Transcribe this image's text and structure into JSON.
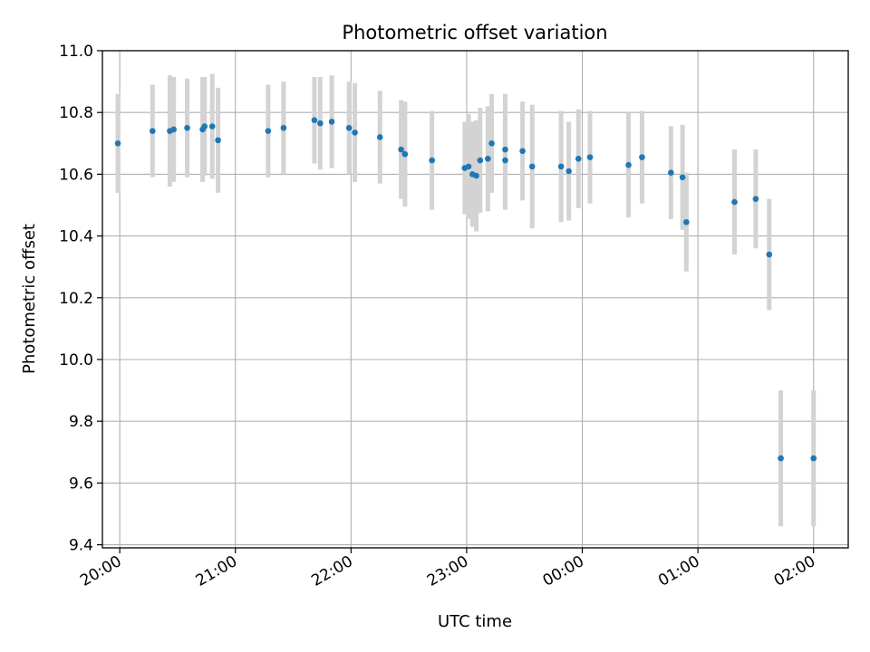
{
  "chart_data": {
    "type": "scatter",
    "title": "Photometric offset variation",
    "xlabel": "UTC time",
    "ylabel": "Photometric offset",
    "x_unit": "UTC time (HH:MM)",
    "xlim": [
      "19:51",
      "02:18"
    ],
    "ylim": [
      9.39,
      11.0
    ],
    "x_ticks": [
      "20:00",
      "21:00",
      "22:00",
      "23:00",
      "00:00",
      "01:00",
      "02:00"
    ],
    "y_ticks": [
      "9.4",
      "9.6",
      "9.8",
      "10.0",
      "10.2",
      "10.4",
      "10.6",
      "10.8",
      "11.0"
    ],
    "grid": true,
    "legend": "none",
    "point_color": "#1f77b4",
    "errorbar_color": "#d3d3d3",
    "series": [
      {
        "x": [
          "19:59",
          "20:17",
          "20:26",
          "20:28",
          "20:35",
          "20:43",
          "20:44",
          "20:48",
          "20:51",
          "21:17",
          "21:25",
          "21:41",
          "21:44",
          "21:50",
          "21:59",
          "22:02",
          "22:15",
          "22:26",
          "22:28",
          "22:42",
          "22:59",
          "23:01",
          "23:03",
          "23:05",
          "23:07",
          "23:11",
          "23:13",
          "23:20",
          "23:20",
          "23:29",
          "23:34",
          "23:49",
          "23:53",
          "23:58",
          "00:04",
          "00:24",
          "00:31",
          "00:46",
          "00:52",
          "00:54",
          "01:19",
          "01:30",
          "01:37",
          "01:43",
          "02:00"
        ],
        "y": [
          10.7,
          10.74,
          10.74,
          10.745,
          10.75,
          10.745,
          10.755,
          10.755,
          10.71,
          10.74,
          10.75,
          10.775,
          10.765,
          10.77,
          10.75,
          10.735,
          10.72,
          10.68,
          10.665,
          10.645,
          10.62,
          10.625,
          10.6,
          10.595,
          10.645,
          10.65,
          10.7,
          10.68,
          10.645,
          10.675,
          10.625,
          10.625,
          10.61,
          10.65,
          10.655,
          10.63,
          10.655,
          10.605,
          10.59,
          10.445,
          10.51,
          10.52,
          10.34,
          9.68,
          9.68
        ],
        "yerr": [
          0.16,
          0.15,
          0.18,
          0.17,
          0.16,
          0.17,
          0.16,
          0.17,
          0.17,
          0.15,
          0.15,
          0.14,
          0.15,
          0.15,
          0.15,
          0.16,
          0.15,
          0.16,
          0.17,
          0.16,
          0.15,
          0.17,
          0.17,
          0.18,
          0.17,
          0.17,
          0.16,
          0.18,
          0.16,
          0.16,
          0.2,
          0.18,
          0.16,
          0.16,
          0.15,
          0.17,
          0.15,
          0.15,
          0.17,
          0.16,
          0.17,
          0.16,
          0.18,
          0.22,
          0.22
        ]
      }
    ]
  }
}
